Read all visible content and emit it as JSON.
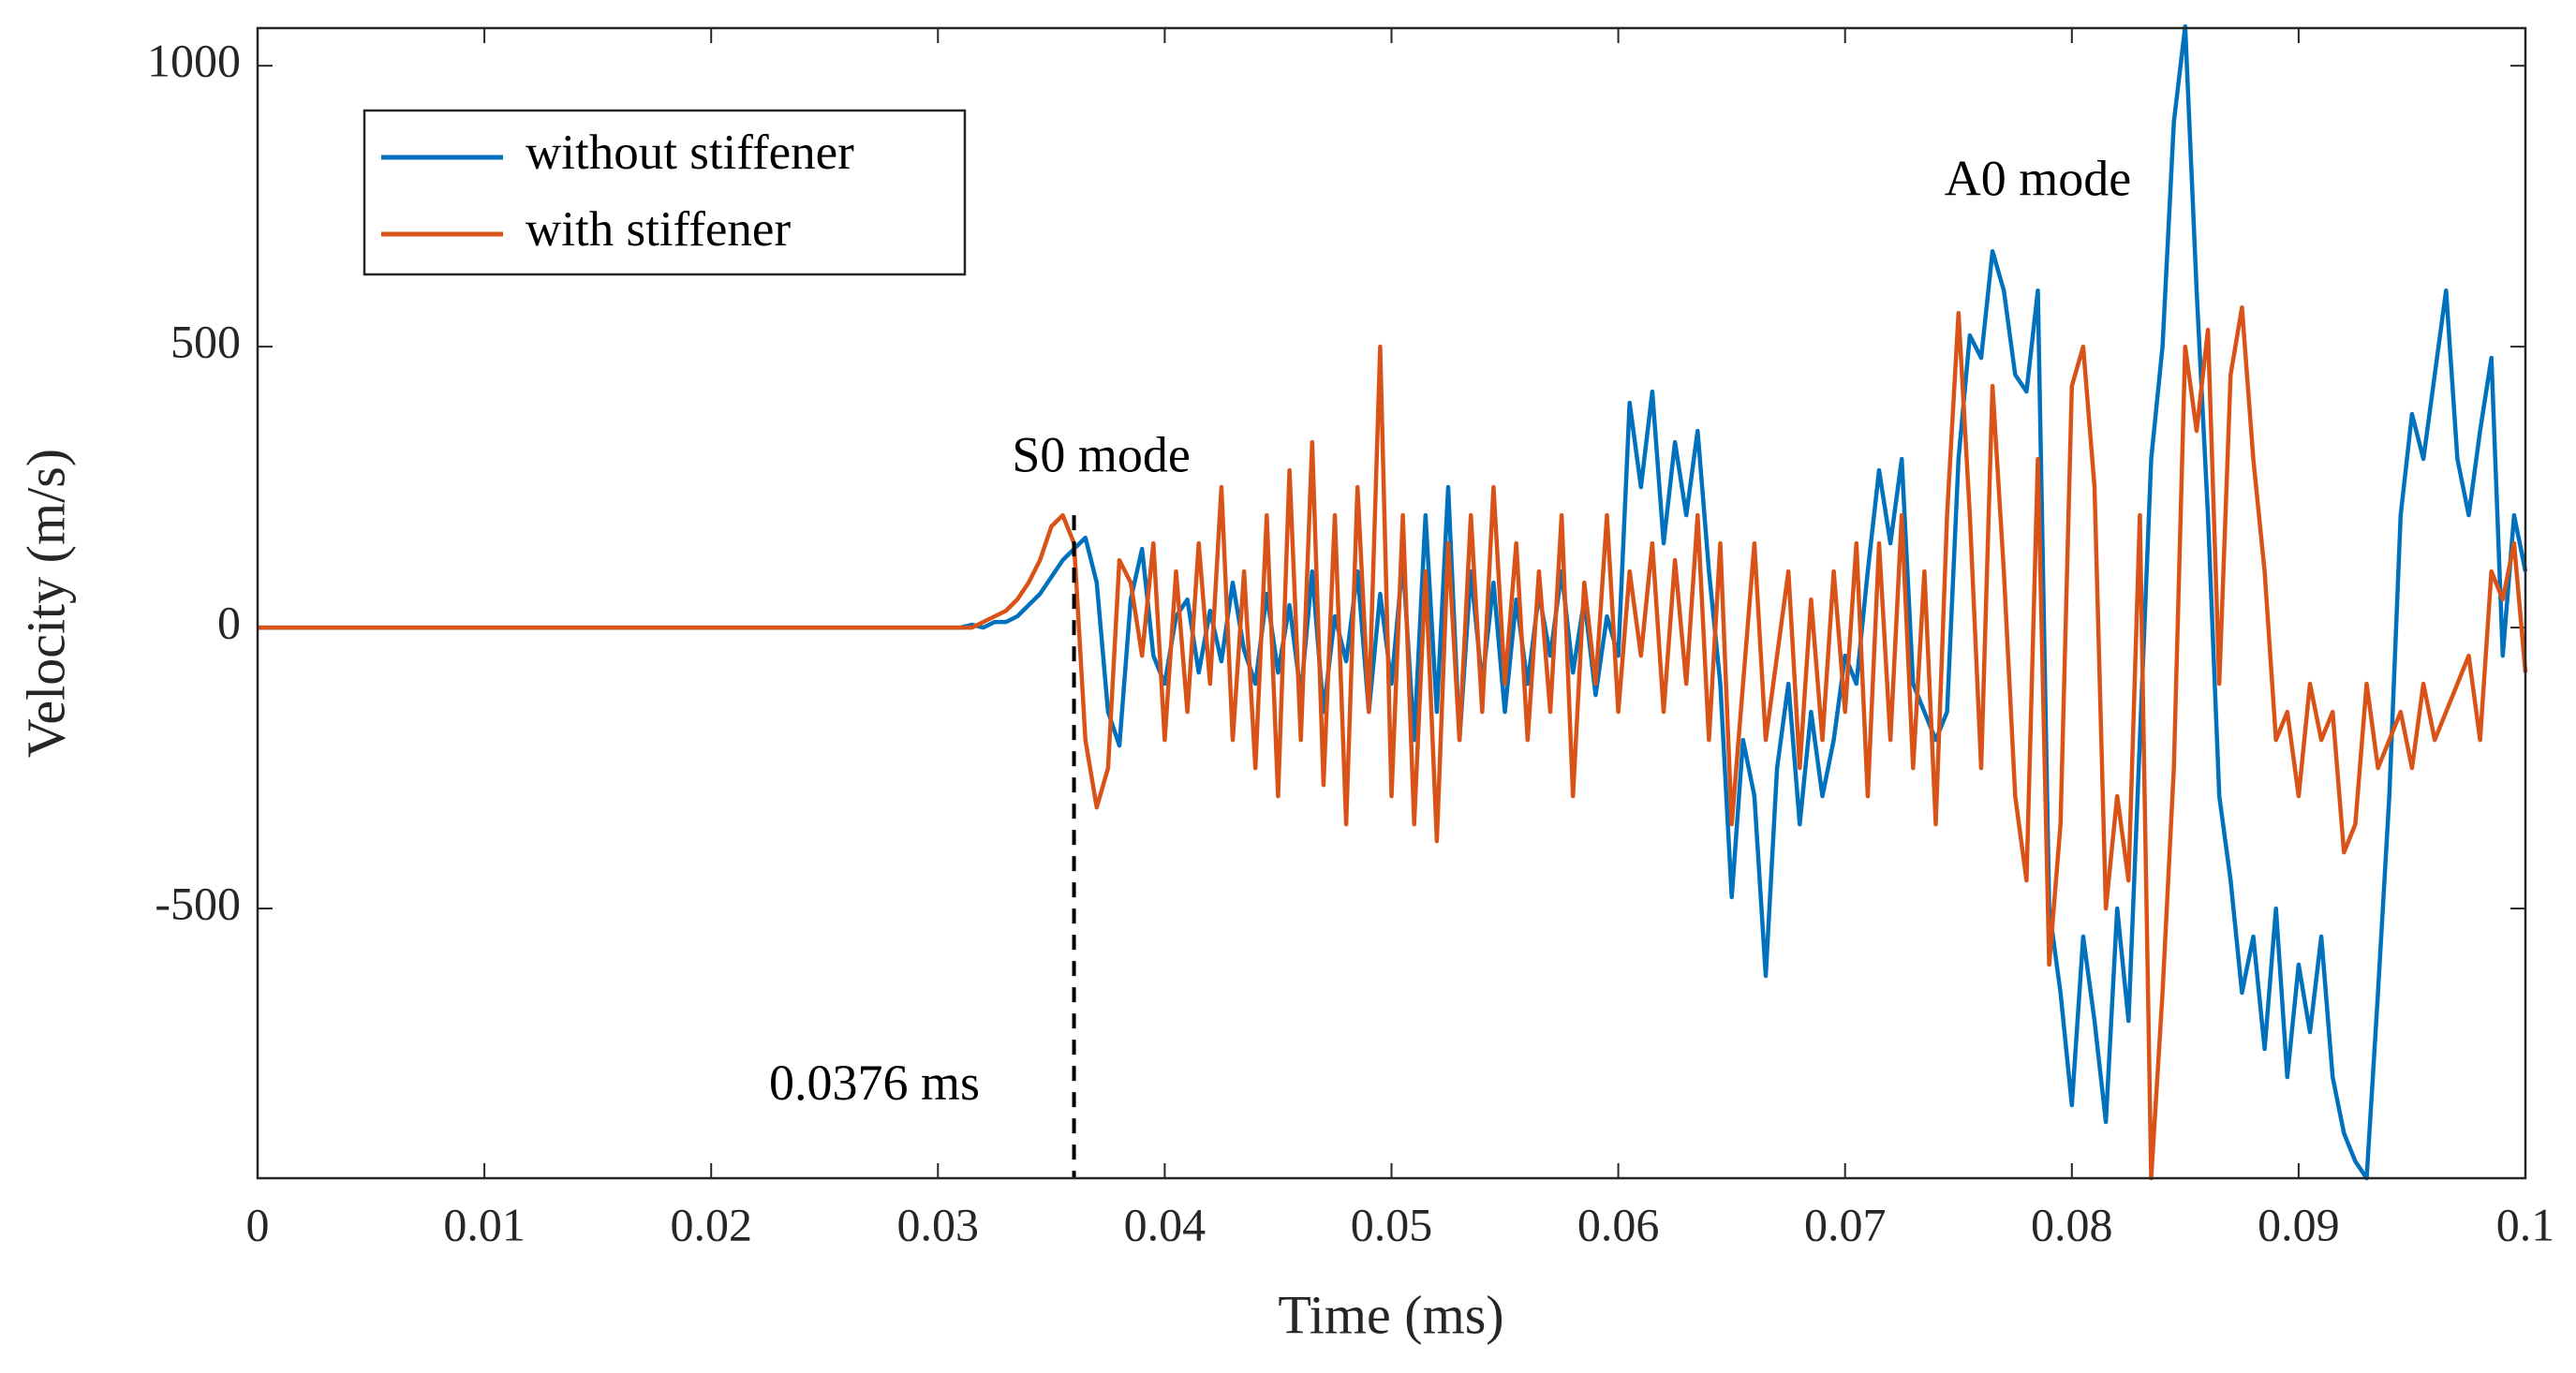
{
  "chart_data": {
    "type": "line",
    "x_label": "Time (ms)",
    "y_label": "Velocity (m/s)",
    "x": [
      0,
      0.03,
      0.0305,
      0.031,
      0.0315,
      0.032,
      0.0325,
      0.033,
      0.0335,
      0.034,
      0.0345,
      0.035,
      0.0355,
      0.036,
      0.0365,
      0.037,
      0.0375,
      0.038,
      0.0385,
      0.039,
      0.0395,
      0.04,
      0.0405,
      0.041,
      0.0415,
      0.042,
      0.0425,
      0.043,
      0.0435,
      0.044,
      0.0445,
      0.045,
      0.0455,
      0.046,
      0.0465,
      0.047,
      0.0475,
      0.048,
      0.0485,
      0.049,
      0.0495,
      0.05,
      0.0505,
      0.051,
      0.0515,
      0.052,
      0.0525,
      0.053,
      0.0535,
      0.054,
      0.0545,
      0.055,
      0.0555,
      0.056,
      0.0565,
      0.057,
      0.0575,
      0.058,
      0.0585,
      0.059,
      0.0595,
      0.06,
      0.0605,
      0.061,
      0.0615,
      0.062,
      0.0625,
      0.063,
      0.0635,
      0.064,
      0.0645,
      0.065,
      0.0655,
      0.066,
      0.0665,
      0.067,
      0.0675,
      0.068,
      0.0685,
      0.069,
      0.0695,
      0.07,
      0.0705,
      0.071,
      0.0715,
      0.072,
      0.0725,
      0.073,
      0.0735,
      0.074,
      0.0745,
      0.075,
      0.0755,
      0.076,
      0.0765,
      0.077,
      0.0775,
      0.078,
      0.0785,
      0.079,
      0.0795,
      0.08,
      0.0805,
      0.081,
      0.0815,
      0.082,
      0.0825,
      0.083,
      0.0835,
      0.084,
      0.0845,
      0.085,
      0.0855,
      0.086,
      0.0865,
      0.087,
      0.0875,
      0.088,
      0.0885,
      0.089,
      0.0895,
      0.09,
      0.0905,
      0.091,
      0.0915,
      0.092,
      0.0925,
      0.093,
      0.0935,
      0.094,
      0.0945,
      0.095,
      0.0955,
      0.096,
      0.0965,
      0.097,
      0.0975,
      0.098,
      0.0985,
      0.099,
      0.0995,
      0.1
    ],
    "series": [
      {
        "name": "without stiffener",
        "color": "#0072bd",
        "values": [
          0,
          0,
          0,
          0,
          5,
          0,
          10,
          10,
          20,
          40,
          60,
          90,
          120,
          140,
          160,
          80,
          -150,
          -210,
          50,
          140,
          -50,
          -100,
          20,
          50,
          -80,
          30,
          -60,
          80,
          -40,
          -100,
          60,
          -80,
          40,
          -120,
          100,
          -150,
          20,
          -60,
          100,
          -150,
          60,
          -100,
          120,
          -200,
          200,
          -150,
          250,
          -200,
          100,
          -100,
          80,
          -150,
          50,
          -100,
          60,
          -50,
          100,
          -80,
          50,
          -120,
          20,
          -50,
          400,
          250,
          420,
          150,
          330,
          200,
          350,
          100,
          -100,
          -480,
          -200,
          -300,
          -620,
          -250,
          -100,
          -350,
          -150,
          -300,
          -200,
          -50,
          -100,
          100,
          280,
          150,
          300,
          -100,
          -150,
          -200,
          -150,
          300,
          520,
          480,
          670,
          600,
          450,
          420,
          600,
          -500,
          -650,
          -850,
          -550,
          -700,
          -880,
          -500,
          -700,
          -200,
          300,
          500,
          900,
          1070,
          600,
          200,
          -300,
          -450,
          -650,
          -550,
          -750,
          -500,
          -800,
          -600,
          -720,
          -550,
          -800,
          -900,
          -950,
          -980,
          -650,
          -300,
          200,
          380,
          300,
          450,
          600,
          300,
          200,
          350,
          480,
          -50,
          200,
          100
        ]
      },
      {
        "name": "with stiffener",
        "color": "#d95319",
        "values": [
          0,
          0,
          0,
          0,
          0,
          10,
          20,
          30,
          50,
          80,
          120,
          180,
          200,
          150,
          -200,
          -320,
          -250,
          120,
          80,
          -50,
          150,
          -200,
          100,
          -150,
          150,
          -100,
          250,
          -200,
          100,
          -250,
          200,
          -300,
          280,
          -200,
          330,
          -280,
          200,
          -350,
          250,
          -150,
          500,
          -300,
          200,
          -350,
          100,
          -380,
          150,
          -200,
          200,
          -150,
          250,
          -100,
          150,
          -200,
          100,
          -150,
          200,
          -300,
          80,
          -100,
          200,
          -150,
          100,
          -50,
          150,
          -150,
          120,
          -100,
          200,
          -200,
          150,
          -350,
          -100,
          150,
          -200,
          -50,
          100,
          -250,
          50,
          -200,
          100,
          -150,
          150,
          -300,
          150,
          -200,
          200,
          -250,
          100,
          -350,
          200,
          560,
          200,
          -250,
          430,
          100,
          -300,
          -450,
          300,
          -600,
          -350,
          430,
          500,
          250,
          -500,
          -300,
          -450,
          200,
          -980,
          -650,
          -250,
          500,
          350,
          530,
          -100,
          450,
          570,
          300,
          100,
          -200,
          -150,
          -300,
          -100,
          -200,
          -150,
          -400,
          -350,
          -100,
          -250,
          -200,
          -150,
          -250,
          -100,
          -200,
          -150,
          -100,
          -50,
          -200,
          100,
          50,
          150,
          -80
        ]
      }
    ],
    "xlim": [
      0,
      0.1
    ],
    "xticks": [
      0,
      0.01,
      0.02,
      0.03,
      0.04,
      0.05,
      0.06,
      0.07,
      0.08,
      0.09,
      0.1
    ],
    "ylim": [
      -980,
      1067
    ],
    "yticks": [
      -500,
      0,
      500,
      1000
    ],
    "legend": "upper left",
    "grid": false,
    "annotations": [
      {
        "text": "S0 mode",
        "x": 0.0372,
        "y": 298
      },
      {
        "text": "A0 mode",
        "x": 0.0785,
        "y": 790
      },
      {
        "text": "0.0376 ms",
        "x": 0.0272,
        "y": -819
      }
    ],
    "vline": {
      "x": 0.036,
      "y": 200
    }
  }
}
